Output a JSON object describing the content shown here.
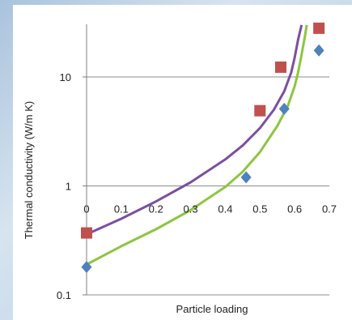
{
  "chart_data": {
    "type": "scatter",
    "title": "",
    "xlabel": "Particle loading",
    "ylabel": "Thermal conductivity (W/m K)",
    "yscale": "log",
    "xlim": [
      0,
      0.7
    ],
    "ylim": [
      0.1,
      30
    ],
    "x_ticks": [
      "0",
      "0.1",
      "0.2",
      "0.3",
      "0.4",
      "0.5",
      "0.6",
      "0.7"
    ],
    "y_ticks": [
      "0.1",
      "1",
      "10"
    ],
    "grid": "horizontal",
    "series": [
      {
        "marker": "square",
        "color": "#c0504d",
        "points": [
          [
            0.0,
            0.37
          ],
          [
            0.5,
            4.9
          ],
          [
            0.56,
            12.3
          ],
          [
            0.67,
            28.0
          ]
        ]
      },
      {
        "marker": "diamond",
        "color": "#4f81bd",
        "points": [
          [
            0.0,
            0.18
          ],
          [
            0.46,
            1.2
          ],
          [
            0.57,
            5.1
          ],
          [
            0.67,
            17.5
          ]
        ]
      },
      {
        "line": "purple-fit",
        "color": "#7b4fa3",
        "points": [
          [
            0.0,
            0.36
          ],
          [
            0.1,
            0.5
          ],
          [
            0.2,
            0.72
          ],
          [
            0.3,
            1.08
          ],
          [
            0.4,
            1.75
          ],
          [
            0.45,
            2.35
          ],
          [
            0.5,
            3.4
          ],
          [
            0.54,
            5.0
          ],
          [
            0.57,
            7.4
          ],
          [
            0.59,
            11.0
          ],
          [
            0.6,
            15.0
          ],
          [
            0.61,
            22.0
          ],
          [
            0.62,
            30.0
          ]
        ]
      },
      {
        "line": "green-fit",
        "color": "#8dc63f",
        "points": [
          [
            0.0,
            0.19
          ],
          [
            0.1,
            0.28
          ],
          [
            0.2,
            0.4
          ],
          [
            0.3,
            0.6
          ],
          [
            0.4,
            0.98
          ],
          [
            0.45,
            1.35
          ],
          [
            0.5,
            2.05
          ],
          [
            0.55,
            3.55
          ],
          [
            0.58,
            5.4
          ],
          [
            0.6,
            8.2
          ],
          [
            0.61,
            11.0
          ],
          [
            0.62,
            16.0
          ],
          [
            0.63,
            24.0
          ],
          [
            0.635,
            30.0
          ]
        ]
      }
    ]
  }
}
